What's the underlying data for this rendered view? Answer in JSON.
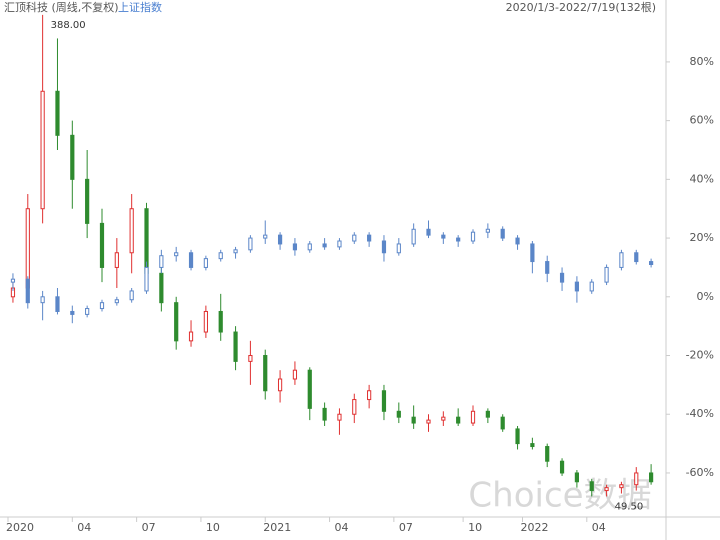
{
  "chart_data": {
    "type": "candlestick",
    "title": "汇顶科技 (周线,不复权)",
    "subtitle": "2020/1/3-2022/7/19(132根)",
    "watermark": "Choice数据",
    "xlim": [
      0,
      132
    ],
    "xticks": [
      {
        "value": 0,
        "label": "2020"
      },
      {
        "value": 13,
        "label": "04"
      },
      {
        "value": 26,
        "label": "07"
      },
      {
        "value": 39,
        "label": "10"
      },
      {
        "value": 52,
        "label": "2021"
      },
      {
        "value": 65,
        "label": "04"
      },
      {
        "value": 78,
        "label": "07"
      },
      {
        "value": 92,
        "label": "10"
      },
      {
        "value": 104,
        "label": "2022"
      },
      {
        "value": 117,
        "label": "04"
      }
    ],
    "ylim": [
      -75,
      97
    ],
    "yticks": [
      {
        "value": 80,
        "label": "80%"
      },
      {
        "value": 60,
        "label": "60%"
      },
      {
        "value": 40,
        "label": "40%"
      },
      {
        "value": 20,
        "label": "20%"
      },
      {
        "value": 0,
        "label": "0%"
      },
      {
        "value": -20,
        "label": "-20%"
      },
      {
        "value": -40,
        "label": "-40%"
      },
      {
        "value": -60,
        "label": "-60%"
      }
    ],
    "x": [
      1,
      4,
      7,
      10,
      13,
      16,
      19,
      22,
      25,
      28,
      31,
      34,
      37,
      40,
      43,
      46,
      49,
      52,
      55,
      58,
      61,
      64,
      67,
      70,
      73,
      76,
      79,
      82,
      85,
      88,
      91,
      94,
      97,
      100,
      103,
      106,
      109,
      112,
      115,
      118,
      121,
      124,
      127,
      130
    ],
    "series": [
      {
        "color_up": "#e03030",
        "color_down": "#2e8b2e",
        "ohlc": [
          [
            0,
            5,
            -2,
            3
          ],
          [
            3,
            35,
            2,
            30
          ],
          [
            30,
            96,
            25,
            70
          ],
          [
            70,
            88,
            50,
            55
          ],
          [
            55,
            60,
            30,
            40
          ],
          [
            40,
            50,
            20,
            25
          ],
          [
            25,
            30,
            5,
            10
          ],
          [
            10,
            20,
            3,
            15
          ],
          [
            15,
            35,
            8,
            30
          ],
          [
            30,
            32,
            5,
            8
          ],
          [
            8,
            10,
            -5,
            -2
          ],
          [
            -2,
            0,
            -18,
            -15
          ],
          [
            -15,
            -8,
            -17,
            -12
          ],
          [
            -12,
            -3,
            -14,
            -5
          ],
          [
            -5,
            1,
            -15,
            -12
          ],
          [
            -12,
            -10,
            -25,
            -22
          ],
          [
            -22,
            -15,
            -30,
            -20
          ],
          [
            -20,
            -18,
            -35,
            -32
          ],
          [
            -32,
            -25,
            -36,
            -28
          ],
          [
            -28,
            -22,
            -30,
            -25
          ],
          [
            -25,
            -24,
            -42,
            -38
          ],
          [
            -38,
            -36,
            -44,
            -42
          ],
          [
            -42,
            -38,
            -47,
            -40
          ],
          [
            -40,
            -33,
            -43,
            -35
          ],
          [
            -35,
            -30,
            -38,
            -32
          ],
          [
            -32,
            -30,
            -42,
            -39
          ],
          [
            -39,
            -36,
            -43,
            -41
          ],
          [
            -41,
            -37,
            -45,
            -43
          ],
          [
            -43,
            -40,
            -46,
            -42
          ],
          [
            -42,
            -39,
            -44,
            -41
          ],
          [
            -41,
            -38,
            -44,
            -43
          ],
          [
            -43,
            -37,
            -44,
            -39
          ],
          [
            -39,
            -38,
            -43,
            -41
          ],
          [
            -41,
            -40,
            -46,
            -45
          ],
          [
            -45,
            -44,
            -52,
            -50
          ],
          [
            -50,
            -48,
            -52,
            -51
          ],
          [
            -51,
            -50,
            -58,
            -56
          ],
          [
            -56,
            -55,
            -61,
            -60
          ],
          [
            -60,
            -59,
            -65,
            -63
          ],
          [
            -63,
            -62,
            -68,
            -66
          ],
          [
            -66,
            -64,
            -68,
            -65
          ],
          [
            -65,
            -63,
            -67,
            -64
          ],
          [
            -64,
            -58,
            -66,
            -60
          ],
          [
            -60,
            -57,
            -64,
            -63
          ]
        ]
      },
      {
        "name": "上证指数",
        "color": "#5b86c8",
        "ohlc": [
          [
            5,
            8,
            2,
            6
          ],
          [
            6,
            7,
            -4,
            -2
          ],
          [
            -2,
            2,
            -8,
            0
          ],
          [
            0,
            3,
            -6,
            -5
          ],
          [
            -5,
            -3,
            -9,
            -6
          ],
          [
            -6,
            -3,
            -7,
            -4
          ],
          [
            -4,
            -1,
            -5,
            -2
          ],
          [
            -2,
            0,
            -3,
            -1
          ],
          [
            -1,
            3,
            -2,
            2
          ],
          [
            2,
            12,
            1,
            10
          ],
          [
            10,
            16,
            8,
            14
          ],
          [
            14,
            17,
            12,
            15
          ],
          [
            15,
            16,
            9,
            10
          ],
          [
            10,
            14,
            9,
            13
          ],
          [
            13,
            16,
            12,
            15
          ],
          [
            15,
            17,
            13,
            16
          ],
          [
            16,
            21,
            15,
            20
          ],
          [
            20,
            26,
            18,
            21
          ],
          [
            21,
            22,
            16,
            18
          ],
          [
            18,
            20,
            14,
            16
          ],
          [
            16,
            19,
            15,
            18
          ],
          [
            18,
            20,
            16,
            17
          ],
          [
            17,
            20,
            16,
            19
          ],
          [
            19,
            22,
            18,
            21
          ],
          [
            21,
            22,
            17,
            19
          ],
          [
            19,
            21,
            12,
            15
          ],
          [
            15,
            20,
            14,
            18
          ],
          [
            18,
            25,
            17,
            23
          ],
          [
            23,
            26,
            20,
            21
          ],
          [
            21,
            22,
            18,
            20
          ],
          [
            20,
            21,
            17,
            19
          ],
          [
            19,
            23,
            18,
            22
          ],
          [
            22,
            25,
            20,
            23
          ],
          [
            23,
            24,
            19,
            20
          ],
          [
            20,
            21,
            16,
            18
          ],
          [
            18,
            19,
            8,
            12
          ],
          [
            12,
            14,
            5,
            8
          ],
          [
            8,
            10,
            2,
            5
          ],
          [
            5,
            7,
            -2,
            2
          ],
          [
            2,
            6,
            1,
            5
          ],
          [
            5,
            11,
            4,
            10
          ],
          [
            10,
            16,
            9,
            15
          ],
          [
            15,
            16,
            11,
            12
          ],
          [
            12,
            13,
            10,
            11
          ]
        ]
      }
    ],
    "annotations": [
      {
        "text": "388.00",
        "x": 7,
        "y": 96
      },
      {
        "text": "49.50",
        "x": 121,
        "y": -68
      }
    ]
  }
}
